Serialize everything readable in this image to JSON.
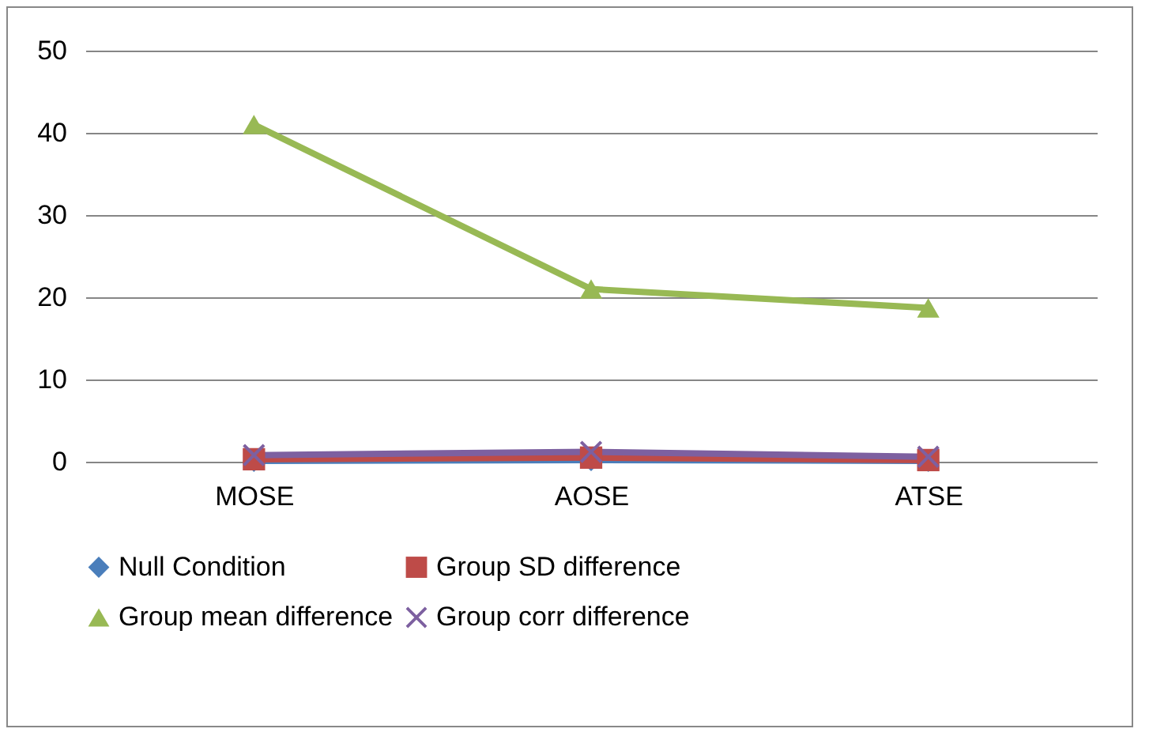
{
  "chart_data": {
    "type": "line",
    "categories": [
      "MOSE",
      "AOSE",
      "ATSE"
    ],
    "series": [
      {
        "name": "Null Condition",
        "color": "#4a7ebb",
        "marker": "diamond",
        "values": [
          0.1,
          0.2,
          0.1
        ]
      },
      {
        "name": "Group SD difference",
        "color": "#be4b48",
        "marker": "square",
        "values": [
          0.3,
          0.5,
          0.2
        ]
      },
      {
        "name": "Group mean difference",
        "color": "#98b954",
        "marker": "triangle",
        "values": [
          41,
          21,
          18.7
        ]
      },
      {
        "name": "Group corr difference",
        "color": "#7d60a0",
        "marker": "cross",
        "values": [
          0.8,
          1.2,
          0.6
        ]
      }
    ],
    "ylim": [
      0,
      50
    ],
    "yticks": [
      0,
      10,
      20,
      30,
      40,
      50
    ],
    "grid": "y",
    "legend": "bottom",
    "line_style": "solid"
  }
}
